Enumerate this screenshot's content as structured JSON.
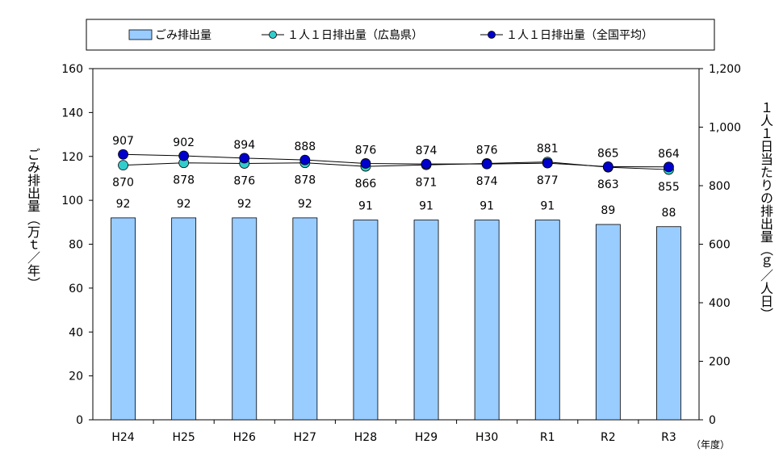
{
  "chart_data": {
    "type": "bar+line",
    "categories": [
      "H24",
      "H25",
      "H26",
      "H27",
      "H28",
      "H29",
      "H30",
      "R1",
      "R2",
      "R3"
    ],
    "series": [
      {
        "name": "ごみ排出量",
        "kind": "bar",
        "axis": "left",
        "color": "#99ccff",
        "values": [
          92,
          92,
          92,
          92,
          91,
          91,
          91,
          91,
          89,
          88
        ],
        "labels": [
          "92",
          "92",
          "92",
          "92",
          "91",
          "91",
          "91",
          "91",
          "89",
          "88"
        ]
      },
      {
        "name": "１人１日排出量（広島県）",
        "kind": "line",
        "axis": "right",
        "color": "#33cccc",
        "values": [
          870,
          878,
          876,
          878,
          866,
          871,
          876,
          881,
          863,
          855
        ],
        "labels": [
          "870",
          "878",
          "876",
          "878",
          "866",
          "871",
          "876",
          "881",
          "863",
          "855"
        ]
      },
      {
        "name": "１人１日排出量（全国平均）",
        "kind": "line",
        "axis": "right",
        "color": "#0000cc",
        "values": [
          907,
          902,
          894,
          888,
          876,
          874,
          874,
          877,
          865,
          864
        ],
        "labels": [
          "907",
          "902",
          "894",
          "888",
          "876",
          "874",
          "874",
          "877",
          "865",
          "864"
        ]
      }
    ],
    "y_left": {
      "label": "ごみ排出量（万ｔ／年）",
      "min": 0,
      "max": 160,
      "step": 20,
      "ticks": [
        "0",
        "20",
        "40",
        "60",
        "80",
        "100",
        "120",
        "140",
        "160"
      ]
    },
    "y_right": {
      "label": "１人１日当たりの排出量（ｇ／人日）",
      "min": 0,
      "max": 1200,
      "step": 200,
      "ticks": [
        "0",
        "200",
        "400",
        "600",
        "800",
        "1,000",
        "1,200"
      ]
    },
    "x_unit": "（年度）",
    "grid": false,
    "legend_position": "top"
  }
}
